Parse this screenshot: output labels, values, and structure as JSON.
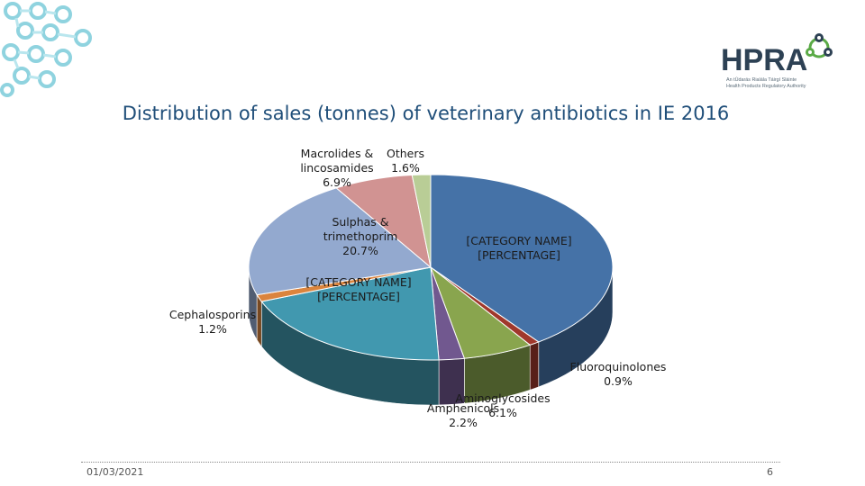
{
  "branding": {
    "logo_text": "HPRA",
    "logo_line1": "An tÚdarás Rialála Táirgí Sláinte",
    "logo_line2": "Health Products Regulatory Authority",
    "decor_icon": "molecule-pattern-icon",
    "logo_icon": "molecule-ring-icon",
    "accent_color": "#5aaa46",
    "navy_color": "#2d4154"
  },
  "footer": {
    "date": "01/03/2021",
    "page": "6"
  },
  "chart_data": {
    "type": "pie",
    "title": "Distribution of sales (tonnes) of veterinary antibiotics in IE 2016",
    "slices": [
      {
        "label_lines": [
          "[CATEGORY NAME]",
          "[PERCENTAGE]"
        ],
        "value": 39.1,
        "color": "#4572a7"
      },
      {
        "label_lines": [
          "Fluoroquinolones",
          "0.9%"
        ],
        "value": 0.9,
        "color": "#a0382c"
      },
      {
        "label_lines": [
          "Aminoglycosides",
          "6.1%"
        ],
        "value": 6.1,
        "color": "#89a54e"
      },
      {
        "label_lines": [
          "Amphenicols",
          "2.2%"
        ],
        "value": 2.2,
        "color": "#71588f"
      },
      {
        "label_lines": [
          "[CATEGORY NAME]",
          "[PERCENTAGE]"
        ],
        "value": 19.3,
        "color": "#4198af"
      },
      {
        "label_lines": [
          "Cephalosporins",
          "1.2%"
        ],
        "value": 1.2,
        "color": "#db843d"
      },
      {
        "label_lines": [
          "Sulphas &",
          "trimethoprim",
          "20.7%"
        ],
        "value": 20.7,
        "color": "#93a9cf"
      },
      {
        "label_lines": [
          "Macrolides &",
          "lincosamides",
          "6.9%"
        ],
        "value": 6.9,
        "color": "#d19392"
      },
      {
        "label_lines": [
          "Others",
          "1.6%"
        ],
        "value": 1.6,
        "color": "#b9cd96"
      }
    ]
  }
}
